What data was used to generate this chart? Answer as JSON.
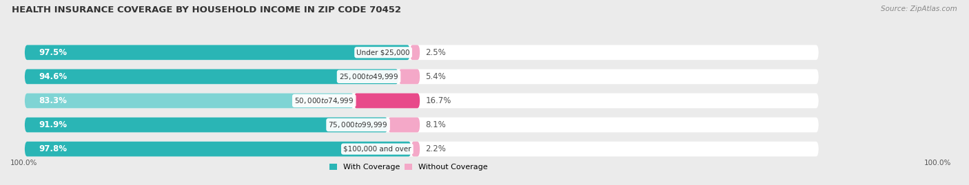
{
  "title": "HEALTH INSURANCE COVERAGE BY HOUSEHOLD INCOME IN ZIP CODE 70452",
  "source": "Source: ZipAtlas.com",
  "categories": [
    "Under $25,000",
    "$25,000 to $49,999",
    "$50,000 to $74,999",
    "$75,000 to $99,999",
    "$100,000 and over"
  ],
  "with_coverage": [
    97.5,
    94.6,
    83.3,
    91.9,
    97.8
  ],
  "without_coverage": [
    2.5,
    5.4,
    16.7,
    8.1,
    2.2
  ],
  "color_with_dark": "#2ab5b5",
  "color_with_light": "#7fd4d4",
  "color_without_dark": "#e84a8a",
  "color_without_light": "#f4a8c8",
  "bg_color": "#ebebeb",
  "bar_bg": "white",
  "title_fontsize": 9.5,
  "label_fontsize": 8.5,
  "source_fontsize": 7.5,
  "bar_height": 0.62,
  "legend_labels": [
    "With Coverage",
    "Without Coverage"
  ],
  "total_bar_scale": 55,
  "xlim_max": 130,
  "bottom_label": "100.0%"
}
